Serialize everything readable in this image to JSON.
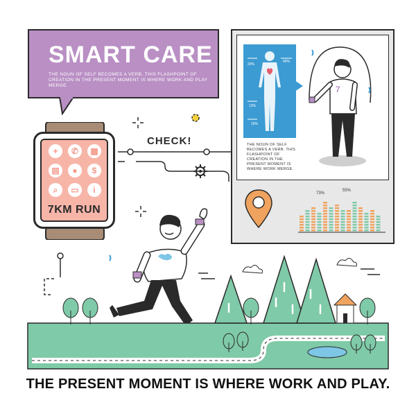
{
  "title": {
    "heading": "SMART CARE",
    "subtext": "THE NOUN OF SELF BECOMES A VERB. THIS FLASHPOINT OF CREATION IN THE PRESENT MOMENT IS WHERE WORK AND PLAY MERGE."
  },
  "watch": {
    "run_label": "7KM RUN",
    "icons": [
      "plus-icon",
      "phone-icon",
      "calculator-icon",
      "clipboard-icon",
      "location-icon",
      "dollar-icon",
      "search-icon",
      "card-icon",
      "info-icon"
    ],
    "icon_glyphs": [
      "+",
      "✆",
      "▦",
      "▤",
      "●",
      "$",
      "⌕",
      "▭",
      "i"
    ]
  },
  "check_label": "CHECK!",
  "panel": {
    "body_percents": [
      "20%",
      "40%",
      "13%",
      "16%"
    ],
    "body_note": "THE NOUN OF SELF BECOMES A VERB. THIS FLASHPOINT OF CREATION IN THE PRESENT MOMENT IS WHERE WORK MERGE.",
    "shirt_number": "7",
    "bar_labels": [
      "73%",
      "55%"
    ],
    "bar_levels": [
      0.55,
      0.7,
      0.8,
      0.6,
      0.9,
      0.75,
      0.85,
      0.65,
      0.7,
      0.9,
      0.8,
      0.6,
      0.7,
      0.5
    ],
    "bar_colors": [
      "#f0a35e",
      "#7fcaa8"
    ]
  },
  "footer": "THE PRESENT MOMENT IS WHERE WORK AND PLAY.",
  "colors": {
    "purple": "#b98fc4",
    "pink": "#f7b5a8",
    "blue": "#3c9bd2",
    "green": "#7fcaa8",
    "orange": "#f0a35e",
    "dark": "#2a2a2a"
  }
}
